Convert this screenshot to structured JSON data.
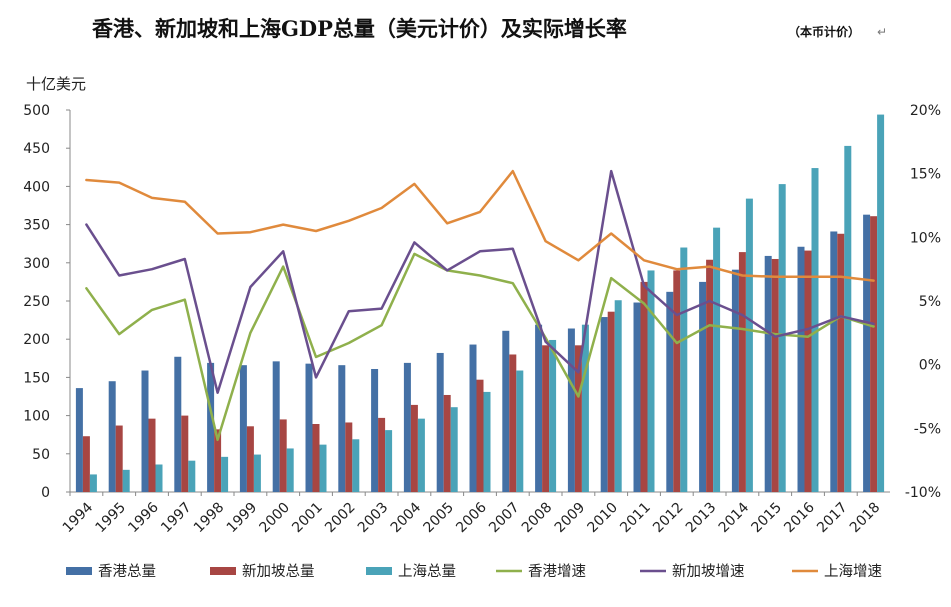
{
  "chart_data": {
    "type": "bar",
    "title": "香港、新加坡和上海GDP总量（美元计价）及实际增长率",
    "subtitle": "（本币计价）",
    "title_end_mark": "↵",
    "ylabel": "十亿美元",
    "ylim": [
      0,
      500
    ],
    "y_ticks": [
      "0",
      "50",
      "100",
      "150",
      "200",
      "250",
      "300",
      "350",
      "400",
      "450",
      "500"
    ],
    "y2lim": [
      -10,
      20
    ],
    "y2_ticks": [
      "-10%",
      "-5%",
      "0%",
      "5%",
      "10%",
      "15%",
      "20%"
    ],
    "grid": false,
    "legend_position": "bottom",
    "categories": [
      "1994",
      "1995",
      "1996",
      "1997",
      "1998",
      "1999",
      "2000",
      "2001",
      "2002",
      "2003",
      "2004",
      "2005",
      "2006",
      "2007",
      "2008",
      "2009",
      "2010",
      "2011",
      "2012",
      "2013",
      "2014",
      "2015",
      "2016",
      "2017",
      "2018"
    ],
    "series": [
      {
        "name": "香港总量",
        "kind": "bar",
        "axis": "left",
        "color": "#4470a5",
        "values": [
          136,
          145,
          159,
          177,
          169,
          166,
          171,
          168,
          166,
          161,
          169,
          182,
          193,
          211,
          219,
          214,
          229,
          248,
          262,
          275,
          291,
          309,
          321,
          341,
          363
        ]
      },
      {
        "name": "新加坡总量",
        "kind": "bar",
        "axis": "left",
        "color": "#a74643",
        "values": [
          73,
          87,
          96,
          100,
          82,
          86,
          95,
          89,
          91,
          97,
          114,
          127,
          147,
          180,
          192,
          192,
          236,
          275,
          290,
          304,
          314,
          305,
          316,
          338,
          361
        ]
      },
      {
        "name": "上海总量",
        "kind": "bar",
        "axis": "left",
        "color": "#4aa3b8",
        "values": [
          23,
          29,
          36,
          41,
          46,
          49,
          57,
          62,
          69,
          81,
          96,
          111,
          131,
          159,
          199,
          219,
          251,
          290,
          320,
          346,
          384,
          403,
          424,
          453,
          494
        ]
      },
      {
        "name": "香港增速",
        "kind": "line",
        "axis": "right",
        "color": "#8fb04c",
        "values": [
          6.0,
          2.4,
          4.3,
          5.1,
          -5.9,
          2.5,
          7.7,
          0.6,
          1.7,
          3.1,
          8.7,
          7.4,
          7.0,
          6.4,
          2.1,
          -2.5,
          6.8,
          4.8,
          1.7,
          3.1,
          2.8,
          2.4,
          2.2,
          3.8,
          3.0
        ]
      },
      {
        "name": "新加坡增速",
        "kind": "line",
        "axis": "right",
        "color": "#6a4f8e",
        "values": [
          11.0,
          7.0,
          7.5,
          8.3,
          -2.2,
          6.1,
          8.9,
          -1.0,
          4.2,
          4.4,
          9.6,
          7.4,
          8.9,
          9.1,
          1.8,
          -0.6,
          15.2,
          6.2,
          3.9,
          5.0,
          3.9,
          2.2,
          2.8,
          3.8,
          3.2
        ]
      },
      {
        "name": "上海增速",
        "kind": "line",
        "axis": "right",
        "color": "#e08a3c",
        "values": [
          14.5,
          14.3,
          13.1,
          12.8,
          10.3,
          10.4,
          11.0,
          10.5,
          11.3,
          12.3,
          14.2,
          11.1,
          12.0,
          15.2,
          9.7,
          8.2,
          10.3,
          8.2,
          7.5,
          7.7,
          7.0,
          6.9,
          6.9,
          6.9,
          6.6
        ]
      }
    ]
  }
}
